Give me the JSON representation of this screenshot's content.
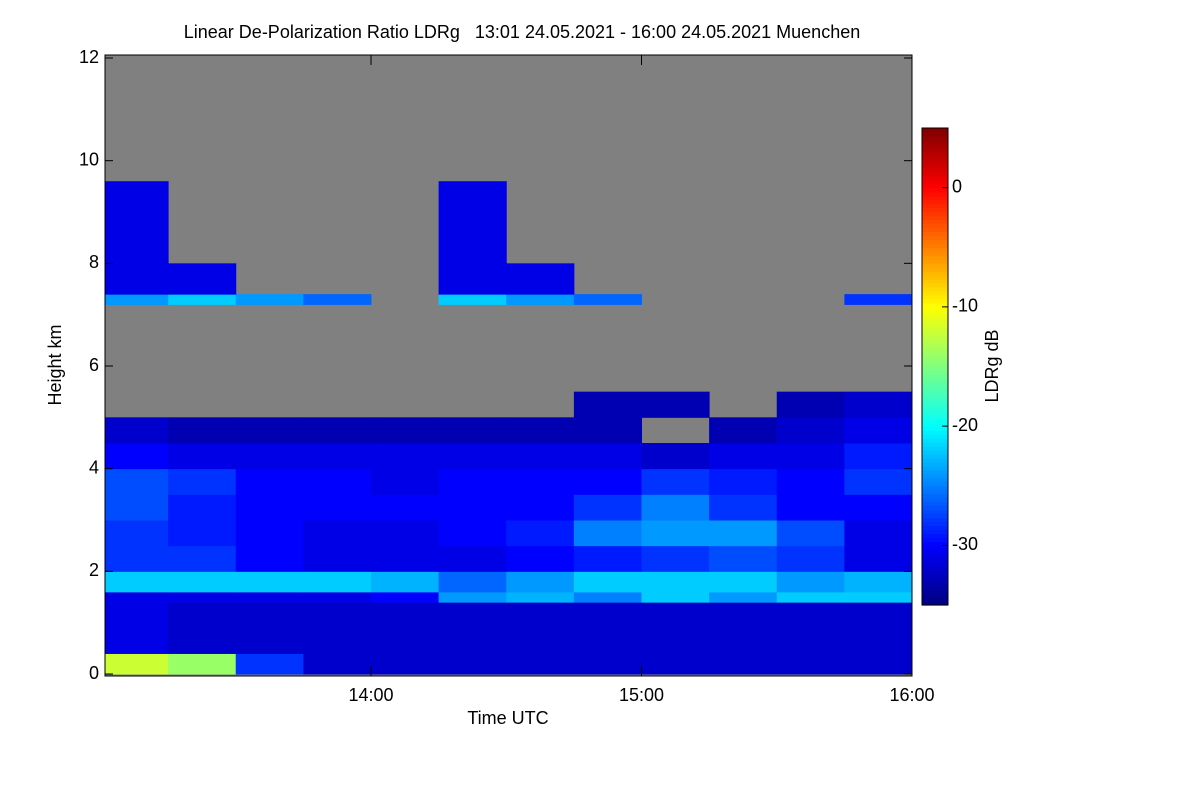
{
  "chart_data": {
    "type": "heatmap",
    "title": "Linear De-Polarization Ratio LDRg   13:01 24.05.2021 - 16:00 24.05.2021 Muenchen",
    "x_label": "Time UTC",
    "y_label": "Height km",
    "colorbar_label": "LDRg dB",
    "xlim": [
      13.0167,
      16.0
    ],
    "ylim": [
      0,
      12
    ],
    "xticks": [
      {
        "value": 14,
        "label": "14:00"
      },
      {
        "value": 15,
        "label": "15:00"
      },
      {
        "value": 16,
        "label": "16:00"
      }
    ],
    "yticks": [
      0,
      2,
      4,
      6,
      8,
      10,
      12
    ],
    "clim": [
      -35,
      5
    ],
    "cticks": [
      0,
      -10,
      -20,
      -30
    ],
    "colormap": "jet",
    "background": "#808080",
    "xbins": [
      13.0167,
      13.25,
      13.5,
      13.75,
      14.0,
      14.25,
      14.5,
      14.75,
      15.0,
      15.25,
      15.5,
      15.75,
      16.0
    ],
    "ybins": [
      0,
      0.4,
      1.4,
      1.6,
      2.0,
      2.5,
      3.0,
      3.5,
      4.0,
      4.5,
      5.0,
      5.5,
      7.2,
      7.4,
      8.0,
      9.6,
      12
    ],
    "z": [
      [
        -12,
        -14,
        -28,
        -32,
        -32,
        -32,
        -32,
        -32,
        -32,
        -32,
        -32,
        -32
      ],
      [
        -31,
        -32,
        -32,
        -32,
        -32,
        -32,
        -32,
        -32,
        -32,
        -32,
        -32,
        -32
      ],
      [
        -31,
        -31,
        -31,
        -31,
        -30,
        -24,
        -23,
        -25,
        -22,
        -24,
        -22,
        -22
      ],
      [
        -22,
        -22,
        -22,
        -22,
        -23,
        -26,
        -24,
        -22,
        -22,
        -22,
        -24,
        -23
      ],
      [
        -28,
        -28,
        -30,
        -31,
        -31,
        -31,
        -30,
        -29,
        -28,
        -27,
        -28,
        -31
      ],
      [
        -28,
        -29,
        -30,
        -31,
        -31,
        -30,
        -29,
        -25,
        -24,
        -24,
        -27,
        -31
      ],
      [
        -27,
        -29,
        -30,
        -30,
        -30,
        -30,
        -30,
        -28,
        -25,
        -28,
        -30,
        -30
      ],
      [
        -27,
        -28,
        -30,
        -30,
        -31,
        -30,
        -30,
        -30,
        -28,
        -29,
        -30,
        -28
      ],
      [
        -30,
        -31,
        -31,
        -31,
        -31,
        -31,
        -31,
        -31,
        -32,
        -31,
        -31,
        -29
      ],
      [
        -32,
        -33,
        -33,
        -33,
        -33,
        -33,
        -33,
        -33,
        null,
        -33,
        -32,
        -31
      ],
      [
        null,
        null,
        null,
        null,
        null,
        null,
        null,
        -33,
        -33,
        null,
        -33,
        -32
      ],
      [
        null,
        null,
        null,
        null,
        null,
        null,
        null,
        null,
        null,
        null,
        null,
        null
      ],
      [
        -24,
        -22,
        -24,
        -26,
        null,
        -22,
        -24,
        -26,
        null,
        null,
        null,
        -28
      ],
      [
        -31,
        -31,
        null,
        null,
        null,
        -31,
        -31,
        null,
        null,
        null,
        null,
        null
      ],
      [
        -31,
        null,
        null,
        null,
        null,
        -31,
        null,
        null,
        null,
        null,
        null,
        null
      ],
      [
        null,
        null,
        null,
        null,
        null,
        null,
        null,
        null,
        null,
        null,
        null,
        null
      ]
    ]
  }
}
